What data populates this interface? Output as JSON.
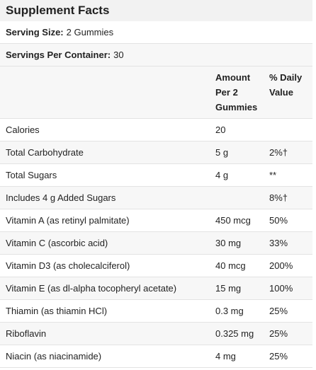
{
  "title": "Supplement Facts",
  "serving_size": {
    "label": "Serving Size:",
    "value": "2 Gummies"
  },
  "servings_per_container": {
    "label": "Servings Per Container:",
    "value": "30"
  },
  "columns": {
    "amount": "Amount Per 2 Gummies",
    "daily_value": "% Daily Value"
  },
  "rows": [
    {
      "name": "Calories",
      "amount": "20",
      "dv": ""
    },
    {
      "name": "Total Carbohydrate",
      "amount": "5 g",
      "dv": "2%†"
    },
    {
      "name": "Total Sugars",
      "amount": "4 g",
      "dv": "**"
    },
    {
      "name": "Includes 4 g Added Sugars",
      "amount": "",
      "dv": "8%†"
    },
    {
      "name": "Vitamin A (as retinyl palmitate)",
      "amount": "450 mcg",
      "dv": "50%"
    },
    {
      "name": "Vitamin C (ascorbic acid)",
      "amount": "30 mg",
      "dv": "33%"
    },
    {
      "name": "Vitamin D3 (as cholecalciferol)",
      "amount": "40 mcg",
      "dv": "200%"
    },
    {
      "name": "Vitamin E (as dl-alpha tocopheryl acetate)",
      "amount": "15 mg",
      "dv": "100%"
    },
    {
      "name": "Thiamin (as thiamin HCl)",
      "amount": "0.3 mg",
      "dv": "25%"
    },
    {
      "name": "Riboflavin",
      "amount": "0.325 mg",
      "dv": "25%"
    },
    {
      "name": "Niacin (as niacinamide)",
      "amount": "4 mg",
      "dv": "25%"
    }
  ]
}
